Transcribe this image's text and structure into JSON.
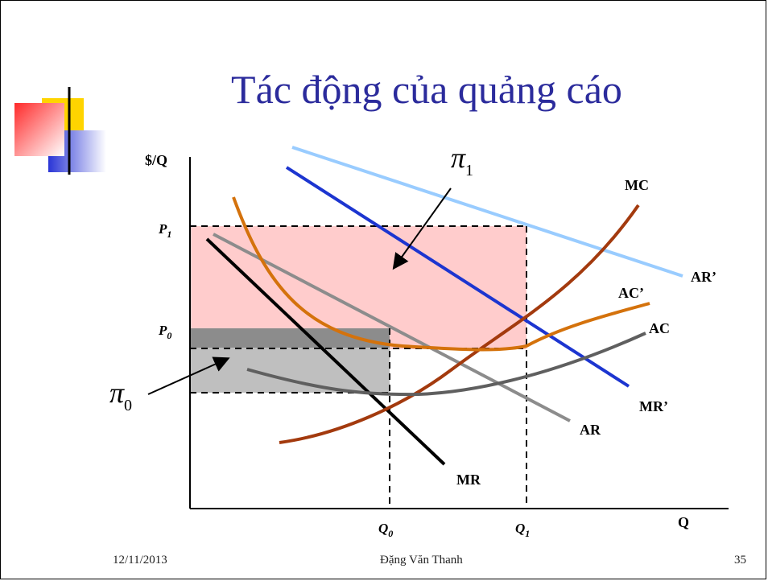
{
  "title": "Tác động của quảng cáo",
  "footer": {
    "date": "12/11/2013",
    "author": "Đặng Văn Thanh",
    "page": "35"
  },
  "diagram": {
    "y_axis_label": "$/Q",
    "x_axis_label": "Q",
    "price_labels": {
      "p1": "P",
      "p1_sub": "1",
      "p0": "P",
      "p0_sub": "0"
    },
    "quantity_labels": {
      "q0": "Q",
      "q0_sub": "0",
      "q1": "Q",
      "q1_sub": "1"
    },
    "curve_labels": {
      "mc": "MC",
      "ar_prime": "AR’",
      "ac_prime": "AC’",
      "ac": "AC",
      "mr_prime": "MR’",
      "ar": "AR",
      "mr": "MR"
    },
    "profit_labels": {
      "pi1": "π",
      "pi1_sub": "1",
      "pi0": "π",
      "pi0_sub": "0"
    },
    "colors": {
      "profit_new_area": "#ffcccc",
      "profit_old_area": "#bfbfbf",
      "profit_old_top": "#8c8c8c",
      "mc": "#a33a0e",
      "ac_prime": "#d4720c",
      "ac": "#5f5f5f",
      "ar": "#8c8c8c",
      "mr": "#000000",
      "ar_prime": "#99ccff",
      "mr_prime": "#1c35d0",
      "deco_yellow": "#ffd400",
      "deco_red": "#ff2a2a",
      "deco_blue": "#2a35d6",
      "title": "#2b2b9c"
    }
  }
}
